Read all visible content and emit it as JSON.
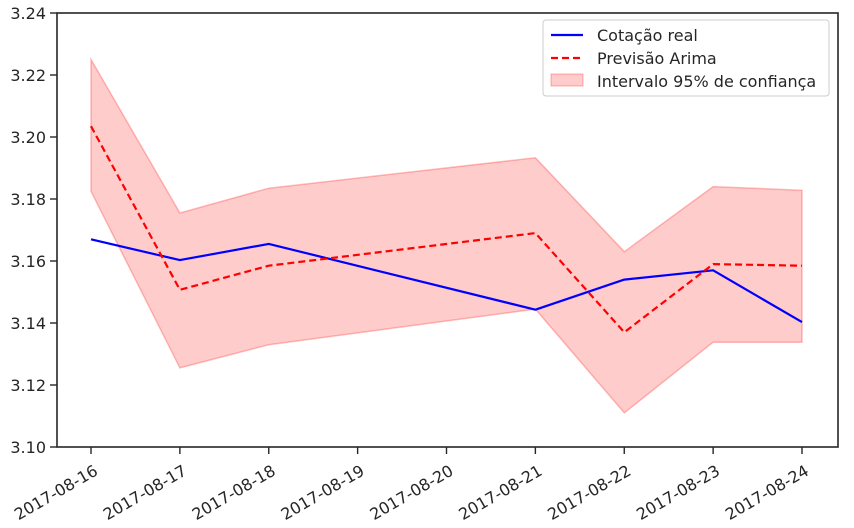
{
  "chart_data": {
    "type": "line",
    "title": "",
    "xlabel": "",
    "ylabel": "",
    "x": [
      "2017-08-16",
      "2017-08-17",
      "2017-08-18",
      "2017-08-19",
      "2017-08-20",
      "2017-08-21",
      "2017-08-22",
      "2017-08-23",
      "2017-08-24"
    ],
    "ylim": [
      3.1,
      3.24
    ],
    "yticks": [
      "3.10",
      "3.12",
      "3.14",
      "3.16",
      "3.18",
      "3.20",
      "3.22",
      "3.24"
    ],
    "grid": false,
    "legend_position": "top-right",
    "series": [
      {
        "name": "Cotação real",
        "style": "solid",
        "color": "#0000ff",
        "points": [
          {
            "x": "2017-08-16",
            "y": 3.167
          },
          {
            "x": "2017-08-17",
            "y": 3.1603
          },
          {
            "x": "2017-08-18",
            "y": 3.1655
          },
          {
            "x": "2017-08-21",
            "y": 3.1443
          },
          {
            "x": "2017-08-22",
            "y": 3.154
          },
          {
            "x": "2017-08-23",
            "y": 3.157
          },
          {
            "x": "2017-08-24",
            "y": 3.1403
          }
        ]
      },
      {
        "name": "Previsão Arima",
        "style": "dashed",
        "color": "#ff0000",
        "points": [
          {
            "x": "2017-08-16",
            "y": 3.2035
          },
          {
            "x": "2017-08-17",
            "y": 3.1507
          },
          {
            "x": "2017-08-18",
            "y": 3.1585
          },
          {
            "x": "2017-08-21",
            "y": 3.169
          },
          {
            "x": "2017-08-22",
            "y": 3.137
          },
          {
            "x": "2017-08-23",
            "y": 3.159
          },
          {
            "x": "2017-08-24",
            "y": 3.1585
          }
        ]
      }
    ],
    "band": {
      "name": "Intervalo 95% de confiança",
      "color": "#ff0000",
      "opacity": 0.2,
      "points": [
        {
          "x": "2017-08-16",
          "lower": 3.1825,
          "upper": 3.225
        },
        {
          "x": "2017-08-17",
          "lower": 3.1255,
          "upper": 3.1755
        },
        {
          "x": "2017-08-18",
          "lower": 3.133,
          "upper": 3.1835
        },
        {
          "x": "2017-08-21",
          "lower": 3.1445,
          "upper": 3.1933
        },
        {
          "x": "2017-08-22",
          "lower": 3.111,
          "upper": 3.163
        },
        {
          "x": "2017-08-23",
          "lower": 3.1338,
          "upper": 3.184
        },
        {
          "x": "2017-08-24",
          "lower": 3.1338,
          "upper": 3.1828
        }
      ]
    }
  }
}
